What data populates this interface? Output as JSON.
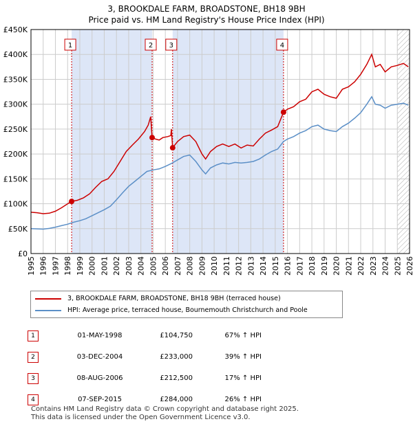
{
  "title": {
    "line1": "3, BROOKDALE FARM, BROADSTONE, BH18 9BH",
    "line2": "Price paid vs. HM Land Registry's House Price Index (HPI)"
  },
  "colors": {
    "property": "#cc0000",
    "hpi": "#5b8fc7",
    "band": "#dde6f7",
    "grid": "#cccccc"
  },
  "chart_data": {
    "type": "line",
    "x_range": [
      1995,
      2026
    ],
    "ylim": [
      0,
      450000
    ],
    "y_ticks": [
      0,
      50000,
      100000,
      150000,
      200000,
      250000,
      300000,
      350000,
      400000,
      450000
    ],
    "y_tick_labels": [
      "£0",
      "£50K",
      "£100K",
      "£150K",
      "£200K",
      "£250K",
      "£300K",
      "£350K",
      "£400K",
      "£450K"
    ],
    "x_ticks": [
      1995,
      1996,
      1997,
      1998,
      1999,
      2000,
      2001,
      2002,
      2003,
      2004,
      2005,
      2006,
      2007,
      2008,
      2009,
      2010,
      2011,
      2012,
      2013,
      2014,
      2015,
      2016,
      2017,
      2018,
      2019,
      2020,
      2021,
      2022,
      2023,
      2024,
      2025,
      2026
    ],
    "x_tick_labels": [
      "1995",
      "1996",
      "1997",
      "1998",
      "1999",
      "2000",
      "2001",
      "2002",
      "2003",
      "2004",
      "2005",
      "2006",
      "2007",
      "2008",
      "2009",
      "2010",
      "2011",
      "2012",
      "2013",
      "2014",
      "2015",
      "2016",
      "2017",
      "2018",
      "2019",
      "2020",
      "2021",
      "2022",
      "2023",
      "2024",
      "2025",
      "2026"
    ],
    "hatch_from": 2025.0,
    "shaded_bands": [
      [
        1998.33,
        2004.92
      ],
      [
        2006.6,
        2015.68
      ]
    ],
    "series": [
      {
        "name": "3, BROOKDALE FARM, BROADSTONE, BH18 9BH (terraced house)",
        "color": "#cc0000",
        "points": [
          [
            1995.0,
            83000
          ],
          [
            1995.5,
            82000
          ],
          [
            1996.0,
            80000
          ],
          [
            1996.5,
            81000
          ],
          [
            1997.0,
            85000
          ],
          [
            1997.5,
            92000
          ],
          [
            1998.0,
            100000
          ],
          [
            1998.33,
            104750
          ],
          [
            1998.8,
            107000
          ],
          [
            1999.3,
            112000
          ],
          [
            1999.8,
            120000
          ],
          [
            2000.3,
            133000
          ],
          [
            2000.8,
            145000
          ],
          [
            2001.3,
            150000
          ],
          [
            2001.8,
            165000
          ],
          [
            2002.3,
            185000
          ],
          [
            2002.8,
            205000
          ],
          [
            2003.3,
            218000
          ],
          [
            2003.8,
            230000
          ],
          [
            2004.3,
            245000
          ],
          [
            2004.6,
            258000
          ],
          [
            2004.8,
            275000
          ],
          [
            2004.92,
            233000
          ],
          [
            2005.2,
            230000
          ],
          [
            2005.5,
            228000
          ],
          [
            2005.8,
            233000
          ],
          [
            2006.2,
            235000
          ],
          [
            2006.45,
            237000
          ],
          [
            2006.5,
            250000
          ],
          [
            2006.6,
            212500
          ],
          [
            2007.0,
            225000
          ],
          [
            2007.5,
            235000
          ],
          [
            2008.0,
            238000
          ],
          [
            2008.5,
            225000
          ],
          [
            2009.0,
            200000
          ],
          [
            2009.3,
            190000
          ],
          [
            2009.7,
            205000
          ],
          [
            2010.2,
            215000
          ],
          [
            2010.7,
            220000
          ],
          [
            2011.2,
            215000
          ],
          [
            2011.7,
            220000
          ],
          [
            2012.2,
            212000
          ],
          [
            2012.7,
            218000
          ],
          [
            2013.2,
            216000
          ],
          [
            2013.7,
            230000
          ],
          [
            2014.2,
            242000
          ],
          [
            2014.7,
            248000
          ],
          [
            2015.2,
            255000
          ],
          [
            2015.68,
            284000
          ],
          [
            2016.0,
            290000
          ],
          [
            2016.5,
            295000
          ],
          [
            2017.0,
            305000
          ],
          [
            2017.5,
            310000
          ],
          [
            2018.0,
            325000
          ],
          [
            2018.5,
            330000
          ],
          [
            2019.0,
            320000
          ],
          [
            2019.5,
            315000
          ],
          [
            2020.0,
            312000
          ],
          [
            2020.5,
            330000
          ],
          [
            2021.0,
            335000
          ],
          [
            2021.5,
            345000
          ],
          [
            2022.0,
            360000
          ],
          [
            2022.5,
            380000
          ],
          [
            2022.9,
            400000
          ],
          [
            2023.2,
            375000
          ],
          [
            2023.6,
            380000
          ],
          [
            2024.0,
            365000
          ],
          [
            2024.5,
            375000
          ],
          [
            2025.0,
            378000
          ],
          [
            2025.5,
            382000
          ],
          [
            2025.9,
            375000
          ]
        ]
      },
      {
        "name": "HPI: Average price, terraced house, Bournemouth Christchurch and Poole",
        "color": "#5b8fc7",
        "points": [
          [
            1995.0,
            50000
          ],
          [
            1995.5,
            49500
          ],
          [
            1996.0,
            49000
          ],
          [
            1996.5,
            50500
          ],
          [
            1997.0,
            53000
          ],
          [
            1997.5,
            56000
          ],
          [
            1998.0,
            59000
          ],
          [
            1998.5,
            63000
          ],
          [
            1999.0,
            66000
          ],
          [
            1999.5,
            70000
          ],
          [
            2000.0,
            76000
          ],
          [
            2000.5,
            82000
          ],
          [
            2001.0,
            88000
          ],
          [
            2001.5,
            95000
          ],
          [
            2002.0,
            108000
          ],
          [
            2002.5,
            122000
          ],
          [
            2003.0,
            135000
          ],
          [
            2003.5,
            145000
          ],
          [
            2004.0,
            155000
          ],
          [
            2004.5,
            165000
          ],
          [
            2005.0,
            168000
          ],
          [
            2005.5,
            170000
          ],
          [
            2006.0,
            175000
          ],
          [
            2006.5,
            181000
          ],
          [
            2007.0,
            188000
          ],
          [
            2007.5,
            195000
          ],
          [
            2008.0,
            198000
          ],
          [
            2008.5,
            185000
          ],
          [
            2009.0,
            168000
          ],
          [
            2009.3,
            160000
          ],
          [
            2009.7,
            172000
          ],
          [
            2010.2,
            178000
          ],
          [
            2010.7,
            182000
          ],
          [
            2011.2,
            180000
          ],
          [
            2011.7,
            183000
          ],
          [
            2012.2,
            182000
          ],
          [
            2012.7,
            183000
          ],
          [
            2013.2,
            185000
          ],
          [
            2013.7,
            190000
          ],
          [
            2014.2,
            198000
          ],
          [
            2014.7,
            205000
          ],
          [
            2015.2,
            210000
          ],
          [
            2015.68,
            225000
          ],
          [
            2016.0,
            230000
          ],
          [
            2016.5,
            235000
          ],
          [
            2017.0,
            242000
          ],
          [
            2017.5,
            247000
          ],
          [
            2018.0,
            255000
          ],
          [
            2018.5,
            258000
          ],
          [
            2019.0,
            250000
          ],
          [
            2019.5,
            247000
          ],
          [
            2020.0,
            245000
          ],
          [
            2020.5,
            255000
          ],
          [
            2021.0,
            262000
          ],
          [
            2021.5,
            272000
          ],
          [
            2022.0,
            283000
          ],
          [
            2022.5,
            300000
          ],
          [
            2022.9,
            315000
          ],
          [
            2023.2,
            300000
          ],
          [
            2023.6,
            298000
          ],
          [
            2024.0,
            292000
          ],
          [
            2024.5,
            298000
          ],
          [
            2025.0,
            300000
          ],
          [
            2025.5,
            302000
          ],
          [
            2025.9,
            298000
          ]
        ]
      }
    ],
    "sales": [
      {
        "marker": "1",
        "x": 1998.33,
        "value": 104750
      },
      {
        "marker": "2",
        "x": 2004.92,
        "value": 233000
      },
      {
        "marker": "3",
        "x": 2006.6,
        "value": 212500
      },
      {
        "marker": "4",
        "x": 2015.68,
        "value": 284000
      }
    ]
  },
  "legend": {
    "property": "3, BROOKDALE FARM, BROADSTONE, BH18 9BH (terraced house)",
    "hpi": "HPI: Average price, terraced house, Bournemouth Christchurch and Poole"
  },
  "transactions": [
    {
      "marker": "1",
      "date": "01-MAY-1998",
      "price": "£104,750",
      "hpi": "67% ↑ HPI"
    },
    {
      "marker": "2",
      "date": "03-DEC-2004",
      "price": "£233,000",
      "hpi": "39% ↑ HPI"
    },
    {
      "marker": "3",
      "date": "08-AUG-2006",
      "price": "£212,500",
      "hpi": "17% ↑ HPI"
    },
    {
      "marker": "4",
      "date": "07-SEP-2015",
      "price": "£284,000",
      "hpi": "26% ↑ HPI"
    }
  ],
  "footer": {
    "line1": "Contains HM Land Registry data © Crown copyright and database right 2025.",
    "line2": "This data is licensed under the Open Government Licence v3.0."
  }
}
